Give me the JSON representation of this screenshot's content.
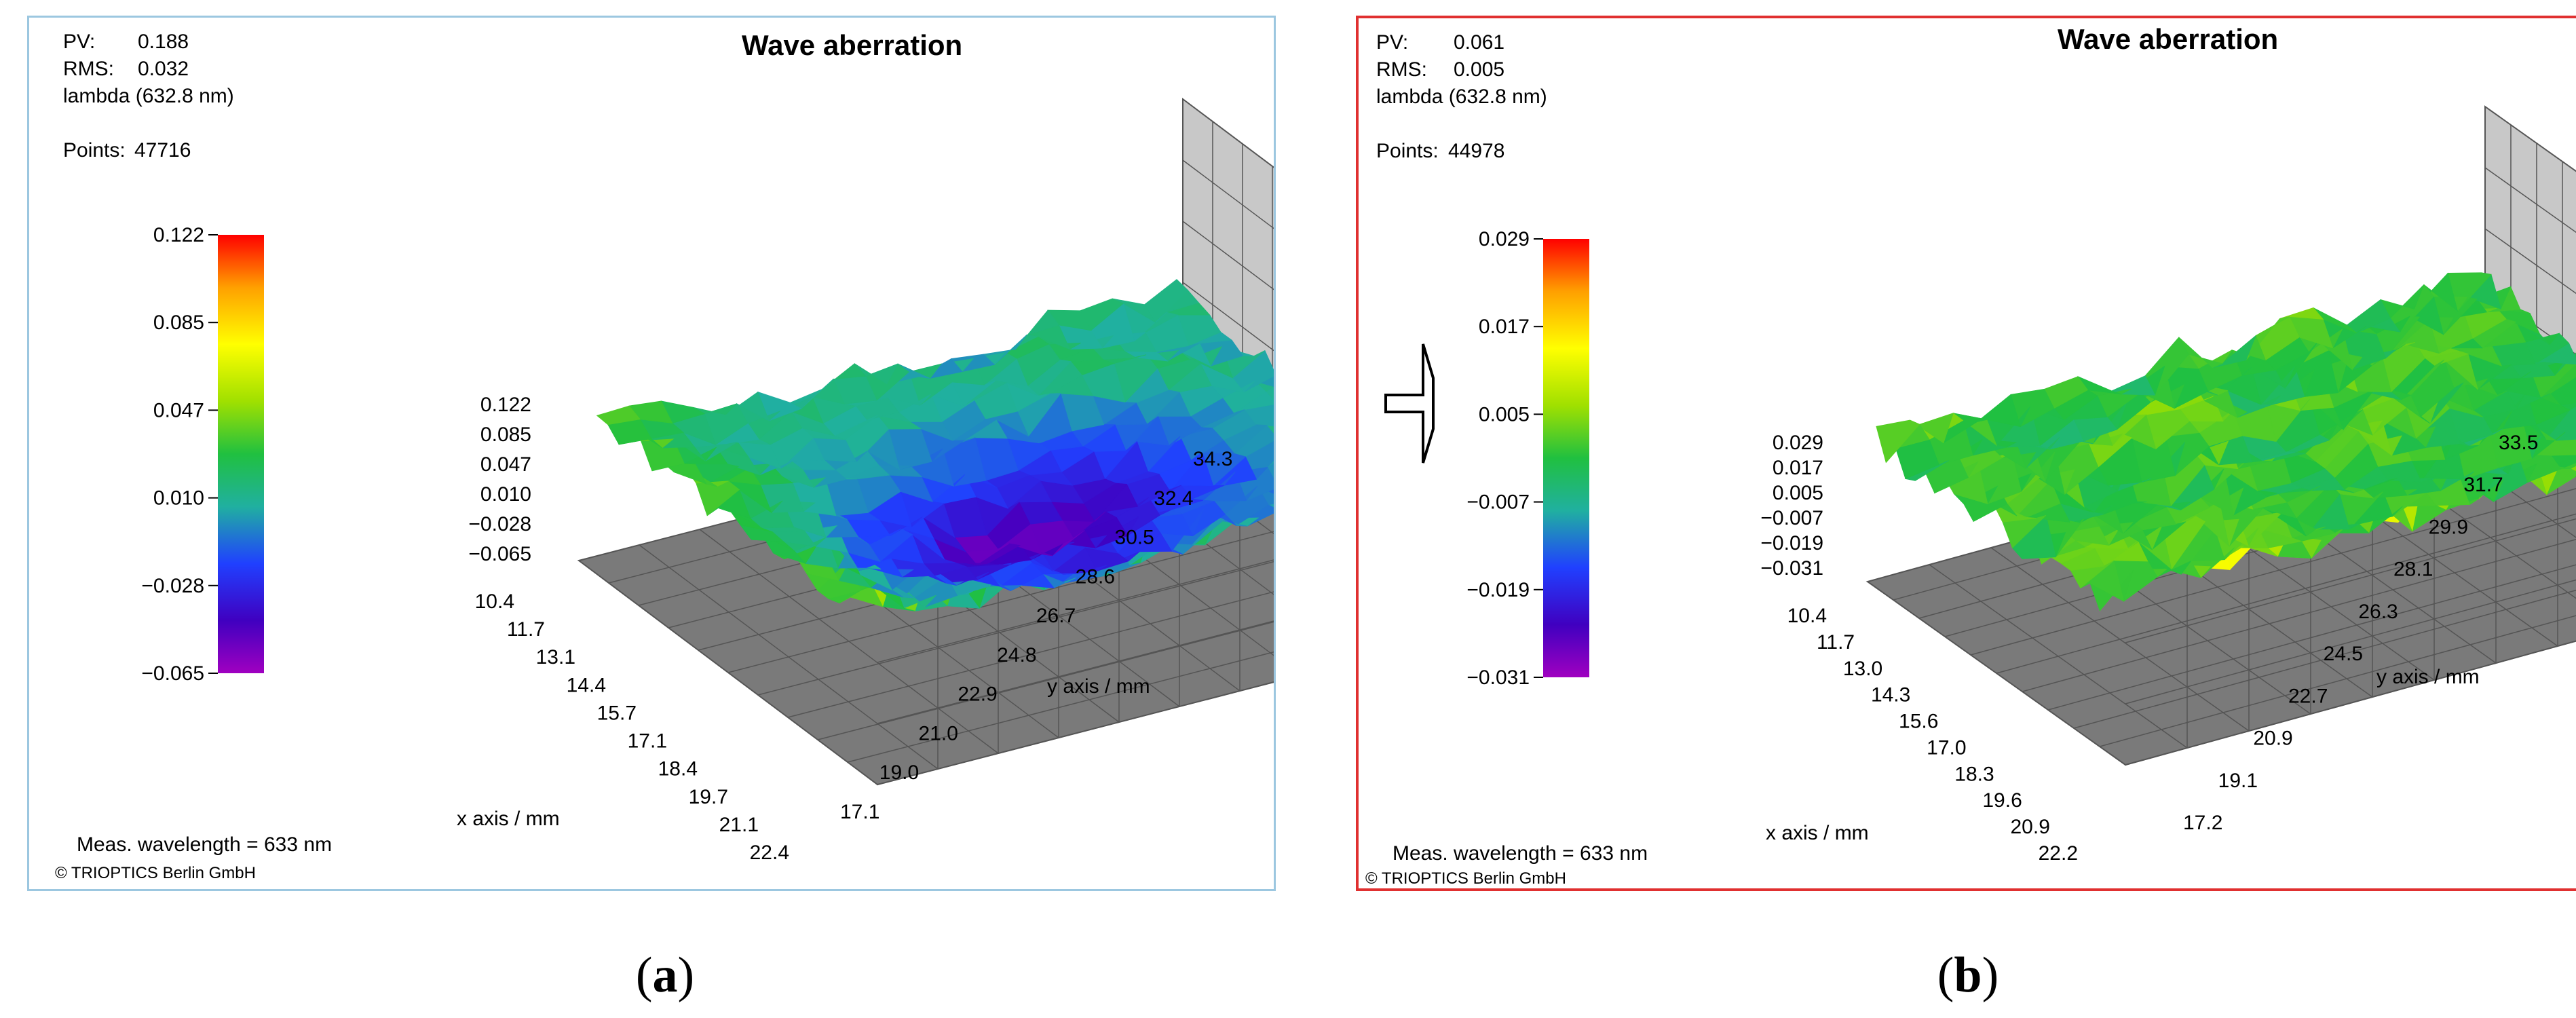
{
  "colors": {
    "panel_a_border": "#9cc7e0",
    "panel_b_border": "#e03030",
    "colorbar_stops": [
      "#ff0000",
      "#ffa000",
      "#ffff00",
      "#a0e000",
      "#20c040",
      "#20b0a0",
      "#2040ff",
      "#4000c0",
      "#a000c0"
    ]
  },
  "panels": [
    {
      "id": "a",
      "caption_open": "(",
      "caption_letter": "a",
      "caption_close": ")",
      "title": "Wave aberration",
      "pv_label": "PV:",
      "pv_value": "0.188",
      "rms_label": "RMS:",
      "rms_value": "0.032",
      "lambda_label": "lambda (632.8 nm)",
      "points_label": "Points:",
      "points_value": "47716",
      "meas_label": "Meas. wavelength = 633 nm",
      "copyright": "© TRIOPTICS Berlin GmbH",
      "has_arrow": false
    },
    {
      "id": "b",
      "caption_open": "(",
      "caption_letter": "b",
      "caption_close": ")",
      "title": "Wave aberration",
      "pv_label": "PV:",
      "pv_value": "0.061",
      "rms_label": "RMS:",
      "rms_value": "0.005",
      "lambda_label": "lambda (632.8 nm)",
      "points_label": "Points:",
      "points_value": "44978",
      "meas_label": "Meas. wavelength = 633 nm",
      "copyright": "© TRIOPTICS Berlin GmbH",
      "has_arrow": true
    }
  ],
  "chart_data": [
    {
      "type": "surface",
      "title": "Wave aberration",
      "xlabel": "x axis / mm",
      "ylabel": "y axis / mm",
      "x_ticks": [
        "10.4",
        "11.7",
        "13.1",
        "14.4",
        "15.7",
        "17.1",
        "18.4",
        "19.7",
        "21.1",
        "22.4"
      ],
      "y_ticks": [
        "17.1",
        "19.0",
        "21.0",
        "22.9",
        "24.8",
        "26.7",
        "28.6",
        "30.5",
        "32.4",
        "34.3"
      ],
      "z_ticks": [
        "0.122",
        "0.085",
        "0.047",
        "0.010",
        "−0.028",
        "−0.065"
      ],
      "colorbar_ticks": [
        "0.122",
        "0.085",
        "0.047",
        "0.010",
        "−0.028",
        "−0.065"
      ],
      "zlim": [
        -0.065,
        0.122
      ],
      "pv": 0.188,
      "rms": 0.032,
      "points": 47716
    },
    {
      "type": "surface",
      "title": "Wave aberration",
      "xlabel": "x axis / mm",
      "ylabel": "y axis / mm",
      "x_ticks": [
        "10.4",
        "11.7",
        "13.0",
        "14.3",
        "15.6",
        "17.0",
        "18.3",
        "19.6",
        "20.9",
        "22.2"
      ],
      "y_ticks": [
        "17.2",
        "19.1",
        "20.9",
        "22.7",
        "24.5",
        "26.3",
        "28.1",
        "29.9",
        "31.7",
        "33.5"
      ],
      "z_ticks": [
        "0.029",
        "0.017",
        "0.005",
        "−0.007",
        "−0.019",
        "−0.031"
      ],
      "colorbar_ticks": [
        "0.029",
        "0.017",
        "0.005",
        "−0.007",
        "−0.019",
        "−0.031"
      ],
      "zlim": [
        -0.031,
        0.029
      ],
      "pv": 0.061,
      "rms": 0.005,
      "points": 44978
    }
  ]
}
